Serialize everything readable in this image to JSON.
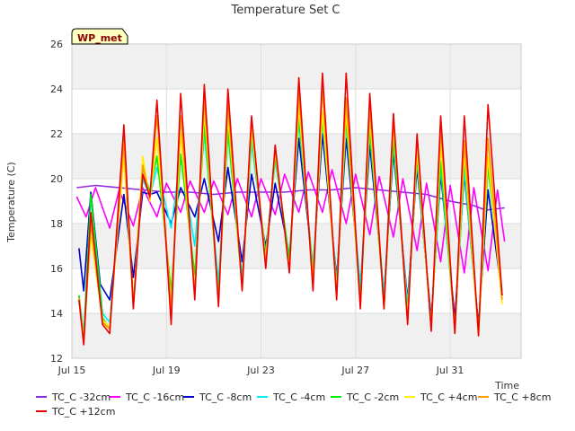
{
  "chart_data": {
    "type": "line",
    "title": "Temperature Set C",
    "xlabel": "Time",
    "ylabel": "Temperature (C)",
    "ylim": [
      12,
      26
    ],
    "yticks": [
      12,
      14,
      16,
      18,
      20,
      22,
      24,
      26
    ],
    "xlim": [
      0,
      19
    ],
    "xticks": [
      {
        "value": 0,
        "label": "Jul 15"
      },
      {
        "value": 4,
        "label": "Jul 19"
      },
      {
        "value": 8,
        "label": "Jul 23"
      },
      {
        "value": 12,
        "label": "Jul 27"
      },
      {
        "value": 16,
        "label": "Jul 31"
      }
    ],
    "grid": true,
    "background_bands": true,
    "legend_position": "bottom",
    "station_tag": "WP_met",
    "series": [
      {
        "name": "TC_C -32cm",
        "color": "#8a2be2",
        "x": [
          0.2,
          1,
          2,
          3,
          4,
          5,
          6,
          7,
          8,
          9,
          10,
          11,
          12,
          13,
          14,
          15,
          16,
          17,
          17.5,
          18.3
        ],
        "y": [
          19.6,
          19.7,
          19.6,
          19.5,
          19.4,
          19.4,
          19.3,
          19.4,
          19.4,
          19.4,
          19.5,
          19.5,
          19.6,
          19.5,
          19.4,
          19.3,
          19.0,
          18.8,
          18.6,
          18.7
        ]
      },
      {
        "name": "TC_C -16cm",
        "color": "#ff00ff",
        "x": [
          0.2,
          0.6,
          1,
          1.6,
          2,
          2.6,
          3,
          3.6,
          4,
          4.6,
          5,
          5.6,
          6,
          6.6,
          7,
          7.6,
          8,
          8.6,
          9,
          9.6,
          10,
          10.6,
          11,
          11.6,
          12,
          12.6,
          13,
          13.6,
          14,
          14.6,
          15,
          15.6,
          16,
          16.6,
          17,
          17.6,
          18,
          18.3
        ],
        "y": [
          19.2,
          18.3,
          19.6,
          17.8,
          19.5,
          17.9,
          19.6,
          18.3,
          19.8,
          18.5,
          19.9,
          18.5,
          19.9,
          18.4,
          20.0,
          18.3,
          20.0,
          18.4,
          20.2,
          18.5,
          20.3,
          18.5,
          20.4,
          18.0,
          20.2,
          17.5,
          20.1,
          17.4,
          20.0,
          16.8,
          19.8,
          16.3,
          19.7,
          15.8,
          19.6,
          15.9,
          19.5,
          17.2
        ]
      },
      {
        "name": "TC_C -8cm",
        "color": "#0000cc",
        "x": [
          0.3,
          0.5,
          0.8,
          1.2,
          1.6,
          2.2,
          2.6,
          3.0,
          3.3,
          3.6,
          4.2,
          4.6,
          5.2,
          5.6,
          6.2,
          6.6,
          7.2,
          7.6,
          8.2,
          8.6,
          9.2,
          9.6,
          10.2,
          10.6,
          11.2,
          11.6,
          12.2,
          12.6,
          13.2,
          13.6,
          14.2,
          14.6,
          15.2,
          15.6,
          16.2,
          16.6,
          17.2,
          17.6,
          18.2
        ],
        "y": [
          16.9,
          15.0,
          19.4,
          15.3,
          14.6,
          19.3,
          15.6,
          19.4,
          19.3,
          19.4,
          18.0,
          19.6,
          18.3,
          20.0,
          17.2,
          20.5,
          16.3,
          20.2,
          17.0,
          19.8,
          16.6,
          21.8,
          16.0,
          22.0,
          15.6,
          21.8,
          15.2,
          21.5,
          14.9,
          21.2,
          14.6,
          20.5,
          13.8,
          20.2,
          13.8,
          20.2,
          13.5,
          19.5,
          14.8
        ]
      },
      {
        "name": "TC_C -4cm",
        "color": "#00eeee",
        "x": [
          0.3,
          0.5,
          0.8,
          1.3,
          1.6,
          2.2,
          2.6,
          3.0,
          3.3,
          3.6,
          4.2,
          4.6,
          5.2,
          5.6,
          6.2,
          6.6,
          7.2,
          7.6,
          8.2,
          8.6,
          9.2,
          9.6,
          10.2,
          10.6,
          11.2,
          11.6,
          12.2,
          12.6,
          13.2,
          13.6,
          14.2,
          14.6,
          15.2,
          15.6,
          16.2,
          16.6,
          17.2,
          17.6,
          18.2
        ],
        "y": [
          14.8,
          13.1,
          19.2,
          14.0,
          13.6,
          21.4,
          14.4,
          20.0,
          19.2,
          20.5,
          17.8,
          21.0,
          17.0,
          22.0,
          15.4,
          22.0,
          15.6,
          21.6,
          16.7,
          20.8,
          16.5,
          22.5,
          16.0,
          22.6,
          15.4,
          22.4,
          15.2,
          22.0,
          14.9,
          21.5,
          14.4,
          20.8,
          13.6,
          20.5,
          13.4,
          20.4,
          13.3,
          20.5,
          15.0
        ]
      },
      {
        "name": "TC_C -2cm",
        "color": "#00ee00",
        "x": [
          0.3,
          0.5,
          0.8,
          1.3,
          1.6,
          2.2,
          2.6,
          3.0,
          3.3,
          3.6,
          4.2,
          4.6,
          5.2,
          5.6,
          6.2,
          6.6,
          7.2,
          7.6,
          8.2,
          8.6,
          9.2,
          9.6,
          10.2,
          10.6,
          11.2,
          11.6,
          12.2,
          12.6,
          13.2,
          13.6,
          14.2,
          14.6,
          15.2,
          15.6,
          16.2,
          16.6,
          17.2,
          17.6,
          18.2
        ],
        "y": [
          14.8,
          12.8,
          19.3,
          13.8,
          13.3,
          22.0,
          14.4,
          20.5,
          19.4,
          21.0,
          15.0,
          21.1,
          15.7,
          22.4,
          14.8,
          22.2,
          15.2,
          22.0,
          16.6,
          21.0,
          16.4,
          22.8,
          15.8,
          22.8,
          15.2,
          22.7,
          14.6,
          22.3,
          14.4,
          21.8,
          14.0,
          21.0,
          13.5,
          20.8,
          13.3,
          20.9,
          13.2,
          20.6,
          14.8
        ]
      },
      {
        "name": "TC_C +4cm",
        "color": "#ffee00",
        "x": [
          0.3,
          0.5,
          0.8,
          1.3,
          1.6,
          2.2,
          2.6,
          3.0,
          3.3,
          3.6,
          4.2,
          4.6,
          5.2,
          5.6,
          6.2,
          6.6,
          7.2,
          7.6,
          8.2,
          8.6,
          9.2,
          9.6,
          10.2,
          10.6,
          11.2,
          11.6,
          12.2,
          12.6,
          13.2,
          13.6,
          14.2,
          14.6,
          15.2,
          15.6,
          16.2,
          16.6,
          17.2,
          17.6,
          18.2
        ],
        "y": [
          14.6,
          12.9,
          17.5,
          13.7,
          13.4,
          21.0,
          14.3,
          21.0,
          19.0,
          21.8,
          14.5,
          22.0,
          15.1,
          23.0,
          14.6,
          22.8,
          15.1,
          22.2,
          16.4,
          21.2,
          16.0,
          23.2,
          15.5,
          23.0,
          15.0,
          23.0,
          14.4,
          22.7,
          14.3,
          22.3,
          13.8,
          21.3,
          13.3,
          21.5,
          13.2,
          21.2,
          13.0,
          21.0,
          14.4
        ]
      },
      {
        "name": "TC_C +8cm",
        "color": "#ff9900",
        "x": [
          0.3,
          0.5,
          0.8,
          1.3,
          1.6,
          2.2,
          2.6,
          3.0,
          3.3,
          3.6,
          4.2,
          4.6,
          5.2,
          5.6,
          6.2,
          6.6,
          7.2,
          7.6,
          8.2,
          8.6,
          9.2,
          9.6,
          10.2,
          10.6,
          11.2,
          11.6,
          12.2,
          12.6,
          13.2,
          13.6,
          14.2,
          14.6,
          15.2,
          15.6,
          16.2,
          16.6,
          17.2,
          17.6,
          18.2
        ],
        "y": [
          14.7,
          12.7,
          18.0,
          13.6,
          13.3,
          21.6,
          14.3,
          20.6,
          19.1,
          22.8,
          14.2,
          22.8,
          14.9,
          23.6,
          14.5,
          23.3,
          15.1,
          22.7,
          16.2,
          21.4,
          15.9,
          23.8,
          15.3,
          24.0,
          14.8,
          23.6,
          14.3,
          23.2,
          14.2,
          22.6,
          13.6,
          21.8,
          13.3,
          22.2,
          13.2,
          21.7,
          13.1,
          21.8,
          14.6
        ]
      },
      {
        "name": "TC_C +12cm",
        "color": "#ee0000",
        "x": [
          0.3,
          0.5,
          0.8,
          1.3,
          1.6,
          2.2,
          2.6,
          3.0,
          3.3,
          3.6,
          4.2,
          4.6,
          5.2,
          5.6,
          6.2,
          6.6,
          7.2,
          7.6,
          8.2,
          8.6,
          9.2,
          9.6,
          10.2,
          10.6,
          11.2,
          11.6,
          12.2,
          12.6,
          13.2,
          13.6,
          14.2,
          14.6,
          15.2,
          15.6,
          16.2,
          16.6,
          17.2,
          17.6,
          18.2
        ],
        "y": [
          14.6,
          12.6,
          18.5,
          13.5,
          13.1,
          22.4,
          14.2,
          20.2,
          19.2,
          23.5,
          13.5,
          23.8,
          14.6,
          24.2,
          14.3,
          24.0,
          15.0,
          22.8,
          16.0,
          21.5,
          15.8,
          24.5,
          15.0,
          24.7,
          14.6,
          24.7,
          14.2,
          23.8,
          14.2,
          22.9,
          13.5,
          22.0,
          13.2,
          22.8,
          13.1,
          22.8,
          13.0,
          23.3,
          14.8
        ]
      }
    ]
  }
}
